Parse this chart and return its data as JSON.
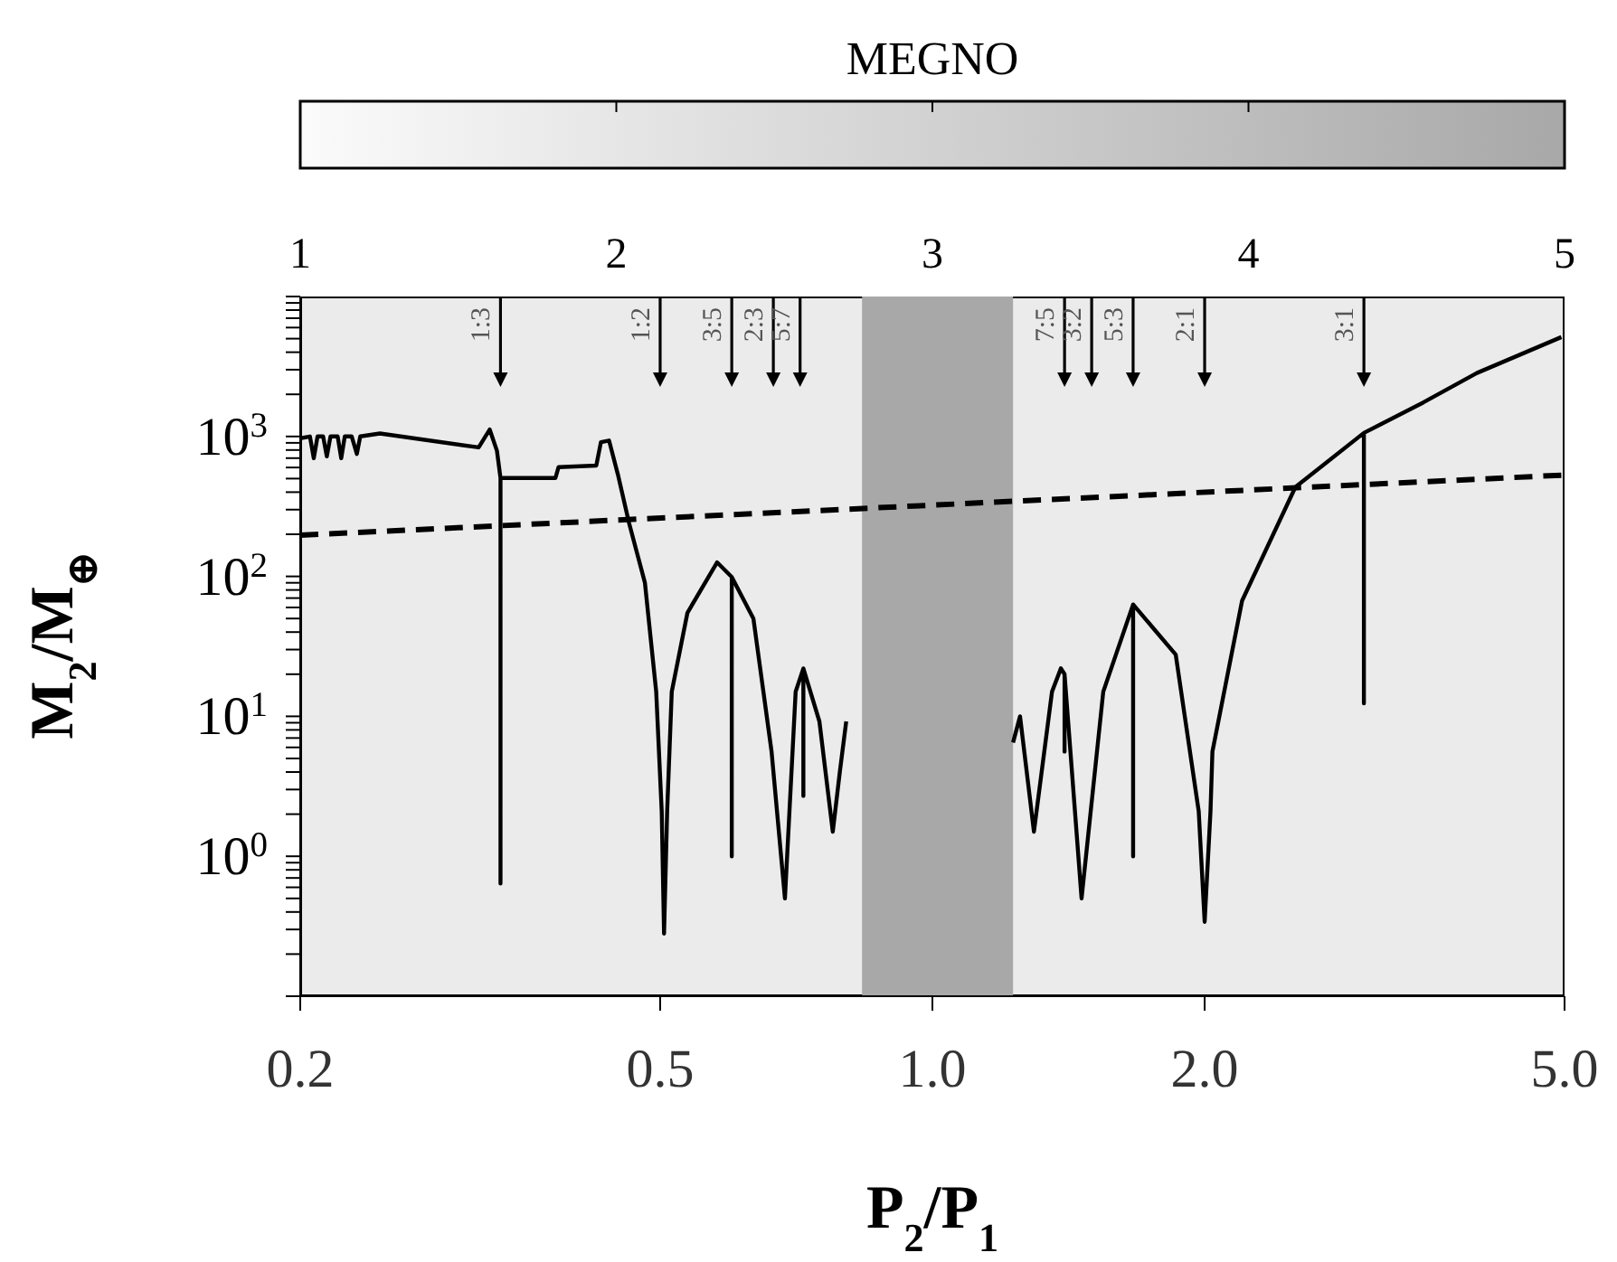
{
  "chart_data": {
    "type": "line",
    "xlabel": "P$_{2}$/P$_{1}$",
    "ylabel": "M$_{2}$/M$_{⊕}$",
    "clabel": "MEGNO",
    "clim": [
      1,
      5
    ],
    "cticks": [
      1,
      2,
      3,
      4,
      5
    ],
    "log": "xy",
    "marker": "none",
    "xlim": [
      0.2,
      5
    ],
    "xticks": [
      0.2,
      0.5,
      {
        "value": 1,
        "label": "1.0"
      },
      {
        "value": 2,
        "label": "2.0"
      },
      {
        "value": 5,
        "label": "5.0"
      }
    ],
    "ylim": [
      0.1,
      10000
    ],
    "yticks": [
      {
        "value": 0.1,
        "label": null
      },
      {
        "value": 0.2,
        "label": null
      },
      {
        "value": 0.3,
        "label": null
      },
      {
        "value": 0.4,
        "label": null
      },
      {
        "value": 0.5,
        "label": null
      },
      {
        "value": 0.6,
        "label": null
      },
      {
        "value": 0.7,
        "label": null
      },
      {
        "value": 0.8,
        "label": null
      },
      {
        "value": 0.9,
        "label": null
      },
      {
        "value": 1,
        "label": "10$^{0}$"
      },
      {
        "value": 2,
        "label": null
      },
      {
        "value": 3,
        "label": null
      },
      {
        "value": 4,
        "label": null
      },
      {
        "value": 5,
        "label": null
      },
      {
        "value": 6,
        "label": null
      },
      {
        "value": 7,
        "label": null
      },
      {
        "value": 8,
        "label": null
      },
      {
        "value": 9,
        "label": null
      },
      {
        "value": 10,
        "label": "10$^{1}$"
      },
      {
        "value": 20,
        "label": null
      },
      {
        "value": 30,
        "label": null
      },
      {
        "value": 40,
        "label": null
      },
      {
        "value": 50,
        "label": null
      },
      {
        "value": 60,
        "label": null
      },
      {
        "value": 70,
        "label": null
      },
      {
        "value": 80,
        "label": null
      },
      {
        "value": 90,
        "label": null
      },
      {
        "value": 100,
        "label": "10$^{2}$"
      },
      {
        "value": 200,
        "label": null
      },
      {
        "value": 300,
        "label": null
      },
      {
        "value": 400,
        "label": null
      },
      {
        "value": 500,
        "label": null
      },
      {
        "value": 600,
        "label": null
      },
      {
        "value": 700,
        "label": null
      },
      {
        "value": 800,
        "label": null
      },
      {
        "value": 900,
        "label": null
      },
      {
        "value": 1000,
        "label": "10$^{3}$"
      },
      {
        "value": 2000,
        "label": null
      },
      {
        "value": 3000,
        "label": null
      },
      {
        "value": 4000,
        "label": null
      },
      {
        "value": 5000,
        "label": null
      },
      {
        "value": 6000,
        "label": null
      },
      {
        "value": 7000,
        "label": null
      },
      {
        "value": 8000,
        "label": null
      },
      {
        "value": 9000,
        "label": null
      },
      {
        "value": 10000,
        "label": null
      }
    ],
    "bands": [
      {
        "axis": "x",
        "from": 0.2,
        "to": 5,
        "color": "#ebebeb"
      },
      {
        "axis": "x",
        "from": 0.836,
        "to": 1.228,
        "color": "#a8a8a8"
      }
    ],
    "series": [
      {
        "color": "#000000",
        "line_style": "solid",
        "x": [
          0.2,
          0.205,
          0.207,
          0.209,
          0.212,
          0.214,
          0.216,
          0.22,
          0.222,
          0.224,
          0.228,
          0.231,
          0.233,
          0.245,
          0.315,
          0.324,
          0.33,
          0.333,
          0.333,
          0.333,
          0.383,
          0.386,
          0.425,
          0.43,
          0.439,
          0.449,
          0.462,
          0.481,
          0.495,
          0.502,
          0.505,
          0.509,
          0.515,
          0.536,
          0.578,
          0.6,
          0.6,
          0.6,
          0.634,
          0.664,
          0.687,
          0.706,
          0.72,
          0.72,
          0.72,
          0.75,
          0.776,
          0.79,
          0.803,
          1.0,
          1.228,
          1.25,
          1.295,
          1.356,
          1.387,
          1.4,
          1.4,
          1.4,
          1.462,
          1.545,
          1.667,
          1.667,
          1.667,
          1.858,
          1.97,
          2.0,
          2.03,
          2.04,
          2.2,
          2.52,
          3.0,
          3.0,
          3.0,
          3.49,
          4.0,
          4.96
        ],
        "values": [
          970,
          1000,
          700,
          1000,
          1000,
          720,
          1000,
          1000,
          700,
          1000,
          1000,
          750,
          1000,
          1050,
          835,
          1120,
          790,
          505,
          0.64,
          505,
          505,
          603,
          620,
          910,
          935,
          535,
          240,
          90,
          15,
          2.1,
          0.28,
          2.1,
          15,
          55,
          126,
          99,
          1.0,
          99,
          50,
          5.6,
          0.5,
          15,
          22,
          2.7,
          22,
          9.2,
          1.5,
          4,
          9.2,
          null,
          6.5,
          10,
          1.5,
          15,
          22,
          20,
          5.6,
          20,
          0.5,
          15,
          63,
          1.0,
          63,
          27.6,
          2.1,
          0.34,
          2.1,
          5.6,
          67,
          435,
          1060,
          12.4,
          1060,
          1750,
          2840,
          5130
        ]
      },
      {
        "color": "#000000",
        "line_style": "dashed",
        "x": [
          0.2,
          1.0,
          5.0
        ],
        "values": [
          197,
          323,
          530
        ]
      }
    ],
    "ref_lines": [
      {
        "axis": "x",
        "value": 0.333
      },
      {
        "axis": "x",
        "value": 0.5
      },
      {
        "axis": "x",
        "value": 0.6
      },
      {
        "axis": "x",
        "value": 0.667
      },
      {
        "axis": "x",
        "value": 0.714
      },
      {
        "axis": "x",
        "value": 1.4
      },
      {
        "axis": "x",
        "value": 1.5
      },
      {
        "axis": "x",
        "value": 1.667
      },
      {
        "axis": "x",
        "value": 2.0
      },
      {
        "axis": "x",
        "value": 3.0
      }
    ],
    "annotations": [
      "1:3",
      "1:2",
      "3:5",
      "2:3",
      "5:7",
      "7:5",
      "3:2",
      "5:3",
      "2:1",
      "3:1"
    ]
  }
}
